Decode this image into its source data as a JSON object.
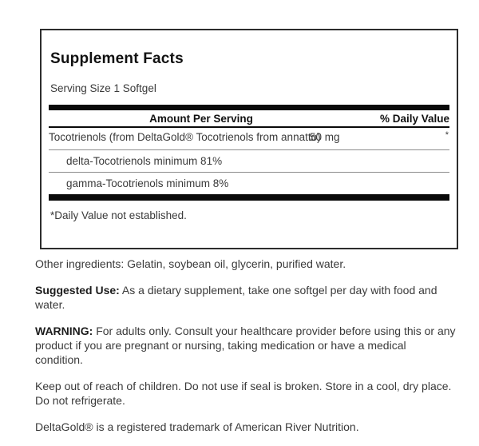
{
  "panel": {
    "title": "Supplement Facts",
    "serving_size": "Serving Size 1 Softgel",
    "header": {
      "amount": "Amount Per Serving",
      "daily_value": "% Daily Value"
    },
    "rows": [
      {
        "name": "Tocotrienols (from DeltaGold® Tocotrienols from annatto)",
        "amount": "50 mg",
        "daily_value": "*"
      },
      {
        "name": "delta-Tocotrienols minimum 81%"
      },
      {
        "name": "gamma-Tocotrienols minimum 8%"
      }
    ],
    "footnote": "*Daily Value not established."
  },
  "info": {
    "other_ingredients": "Other ingredients: Gelatin, soybean oil, glycerin, purified water.",
    "suggested_use_label": "Suggested Use:",
    "suggested_use_text": " As a dietary supplement, take one softgel per day with food and water.",
    "warning_label": "WARNING:",
    "warning_text": " For adults only. Consult your healthcare provider before using this or any product if you are pregnant or nursing, taking medication or have a medical condition.",
    "storage": "Keep out of reach of children. Do not use if seal is broken. Store in a cool, dry place. Do not refrigerate.",
    "trademark": "DeltaGold® is a registered trademark of American River Nutrition."
  },
  "colors": {
    "text": "#3a3a3a",
    "heading": "#111111",
    "bar": "#0a0a0a",
    "separator": "#8c8c8c",
    "border": "#2d2d2d",
    "background": "#ffffff"
  }
}
